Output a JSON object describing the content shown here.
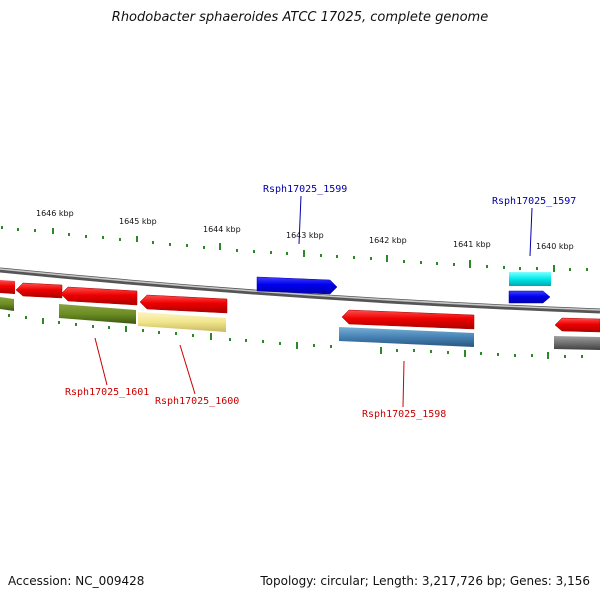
{
  "title": "Rhodobacter sphaeroides ATCC 17025, complete genome",
  "ticks": [
    "1646 kbp",
    "1645 kbp",
    "1644 kbp",
    "1643 kbp",
    "1642 kbp",
    "1641 kbp",
    "1640 kbp"
  ],
  "genes": {
    "g1599": "Rsph17025_1599",
    "g1597": "Rsph17025_1597",
    "g1601": "Rsph17025_1601",
    "g1600": "Rsph17025_1600",
    "g1598": "Rsph17025_1598"
  },
  "footer": {
    "accession": "Accession: NC_009428",
    "summary": "Topology: circular; Length: 3,217,726 bp; Genes: 3,156"
  },
  "colors": {
    "forward_cds": "#0000ee",
    "reverse_cds": "#ee0000",
    "label_forward": "#0000aa",
    "label_reverse": "#cc0000",
    "backbone": "#888888"
  }
}
